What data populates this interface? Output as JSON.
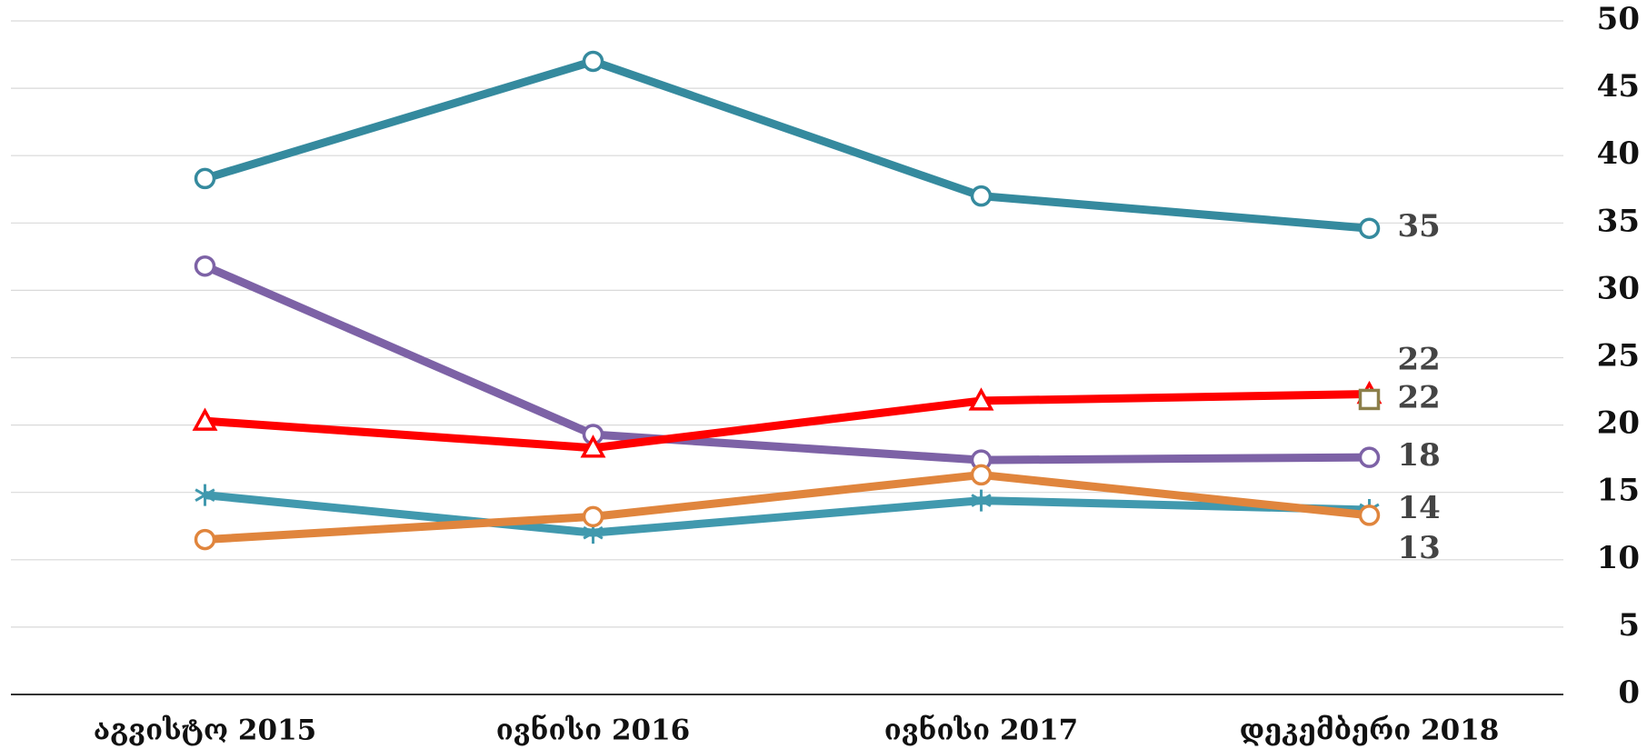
{
  "chart_data": {
    "type": "line",
    "categories": [
      "აგვისტო 2015",
      "ივნისი 2016",
      "ივნისი 2017",
      "დეკემბერი 2018"
    ],
    "series": [
      {
        "color": "#358a9e",
        "marker": "circle",
        "values": [
          38.3,
          47,
          37,
          34.6
        ],
        "value_labels": [
          null,
          null,
          null,
          "35"
        ]
      },
      {
        "color": "#7d62a6",
        "marker": "circle",
        "values": [
          31.8,
          19.3,
          17.4,
          17.6
        ],
        "value_labels": [
          null,
          null,
          null,
          "18"
        ]
      },
      {
        "color": "#ff0000",
        "marker": "triangle",
        "values": [
          20.3,
          18.3,
          21.8,
          22.3
        ],
        "value_labels": [
          null,
          null,
          null,
          "22"
        ]
      },
      {
        "color": "#8c7f4a",
        "marker": "square",
        "values": [
          null,
          null,
          null,
          21.9
        ],
        "value_labels": [
          null,
          null,
          null,
          "22"
        ]
      },
      {
        "color": "#4199ae",
        "marker": "star",
        "values": [
          14.8,
          12,
          14.4,
          13.7
        ],
        "value_labels": [
          null,
          null,
          null,
          "14"
        ]
      },
      {
        "color": "#e0853d",
        "marker": "circle",
        "values": [
          11.5,
          13.2,
          16.3,
          13.3
        ],
        "value_labels": [
          null,
          null,
          null,
          "13"
        ]
      }
    ],
    "ylim": [
      0,
      50
    ],
    "yticks": [
      0,
      5,
      10,
      15,
      20,
      25,
      30,
      35,
      40,
      45,
      50
    ],
    "grid": true
  }
}
